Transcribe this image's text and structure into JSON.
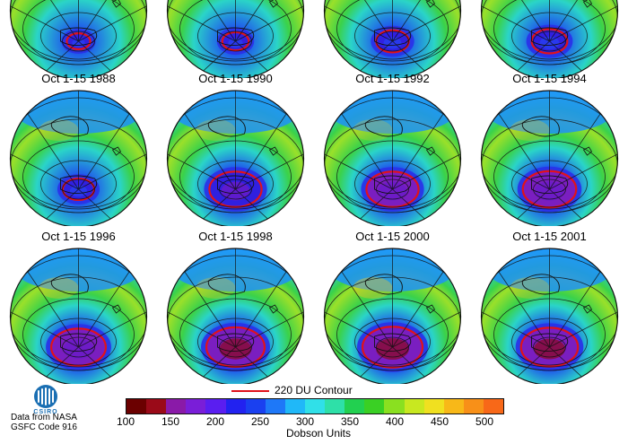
{
  "panels": [
    {
      "label": "",
      "hole": 0.15,
      "depth": 0.15,
      "zone": 0.3
    },
    {
      "label": "",
      "hole": 0.2,
      "depth": 0.25,
      "zone": 0.25
    },
    {
      "label": "",
      "hole": 0.3,
      "depth": 0.4,
      "zone": 0.3
    },
    {
      "label": "",
      "hole": 0.35,
      "depth": 0.45,
      "zone": 0.35
    },
    {
      "label": "Oct 1-15 1988",
      "hole": 0.28,
      "depth": 0.25,
      "zone": 0.3
    },
    {
      "label": "Oct 1-15 1990",
      "hole": 0.62,
      "depth": 0.55,
      "zone": 0.25
    },
    {
      "label": "Oct 1-15 1992",
      "hole": 0.62,
      "depth": 0.65,
      "zone": 0.25
    },
    {
      "label": "Oct 1-15 1994",
      "hole": 0.64,
      "depth": 0.8,
      "zone": 0.3
    },
    {
      "label": "Oct 1-15 1996",
      "hole": 0.66,
      "depth": 0.8,
      "zone": 0.35
    },
    {
      "label": "Oct 1-15 1998",
      "hole": 0.72,
      "depth": 1.0,
      "zone": 0.3
    },
    {
      "label": "Oct 1-15 2000",
      "hole": 0.75,
      "depth": 0.95,
      "zone": 0.4
    },
    {
      "label": "Oct 1-15 2001",
      "hole": 0.7,
      "depth": 0.9,
      "zone": 0.3
    }
  ],
  "contour": {
    "label": "220 DU Contour",
    "color": "#e0121b"
  },
  "colorbar": {
    "title": "Dobson Units",
    "ticks": [
      "100",
      "150",
      "200",
      "250",
      "300",
      "350",
      "400",
      "450",
      "500"
    ],
    "colors": [
      "#6b0000",
      "#9a0a18",
      "#8a1aa8",
      "#7a1ed8",
      "#5a1ef0",
      "#2222f0",
      "#1a40f0",
      "#1e78f8",
      "#20b8f8",
      "#30e0e8",
      "#2ee0a8",
      "#22d050",
      "#3ad024",
      "#8ae020",
      "#c8e820",
      "#f0e020",
      "#f8b818",
      "#f89018",
      "#f86818"
    ]
  },
  "logo": {
    "name": "CSIRO"
  },
  "credit": {
    "line1": "Data from NASA",
    "line2": "GSFC Code 916"
  },
  "colors": {
    "ocean_low": "#1e78f8",
    "ocean_mid": "#28d050",
    "hole": "#2a1ad8",
    "hole_core": "#7a1ec0",
    "ridge": "#f0e020"
  }
}
